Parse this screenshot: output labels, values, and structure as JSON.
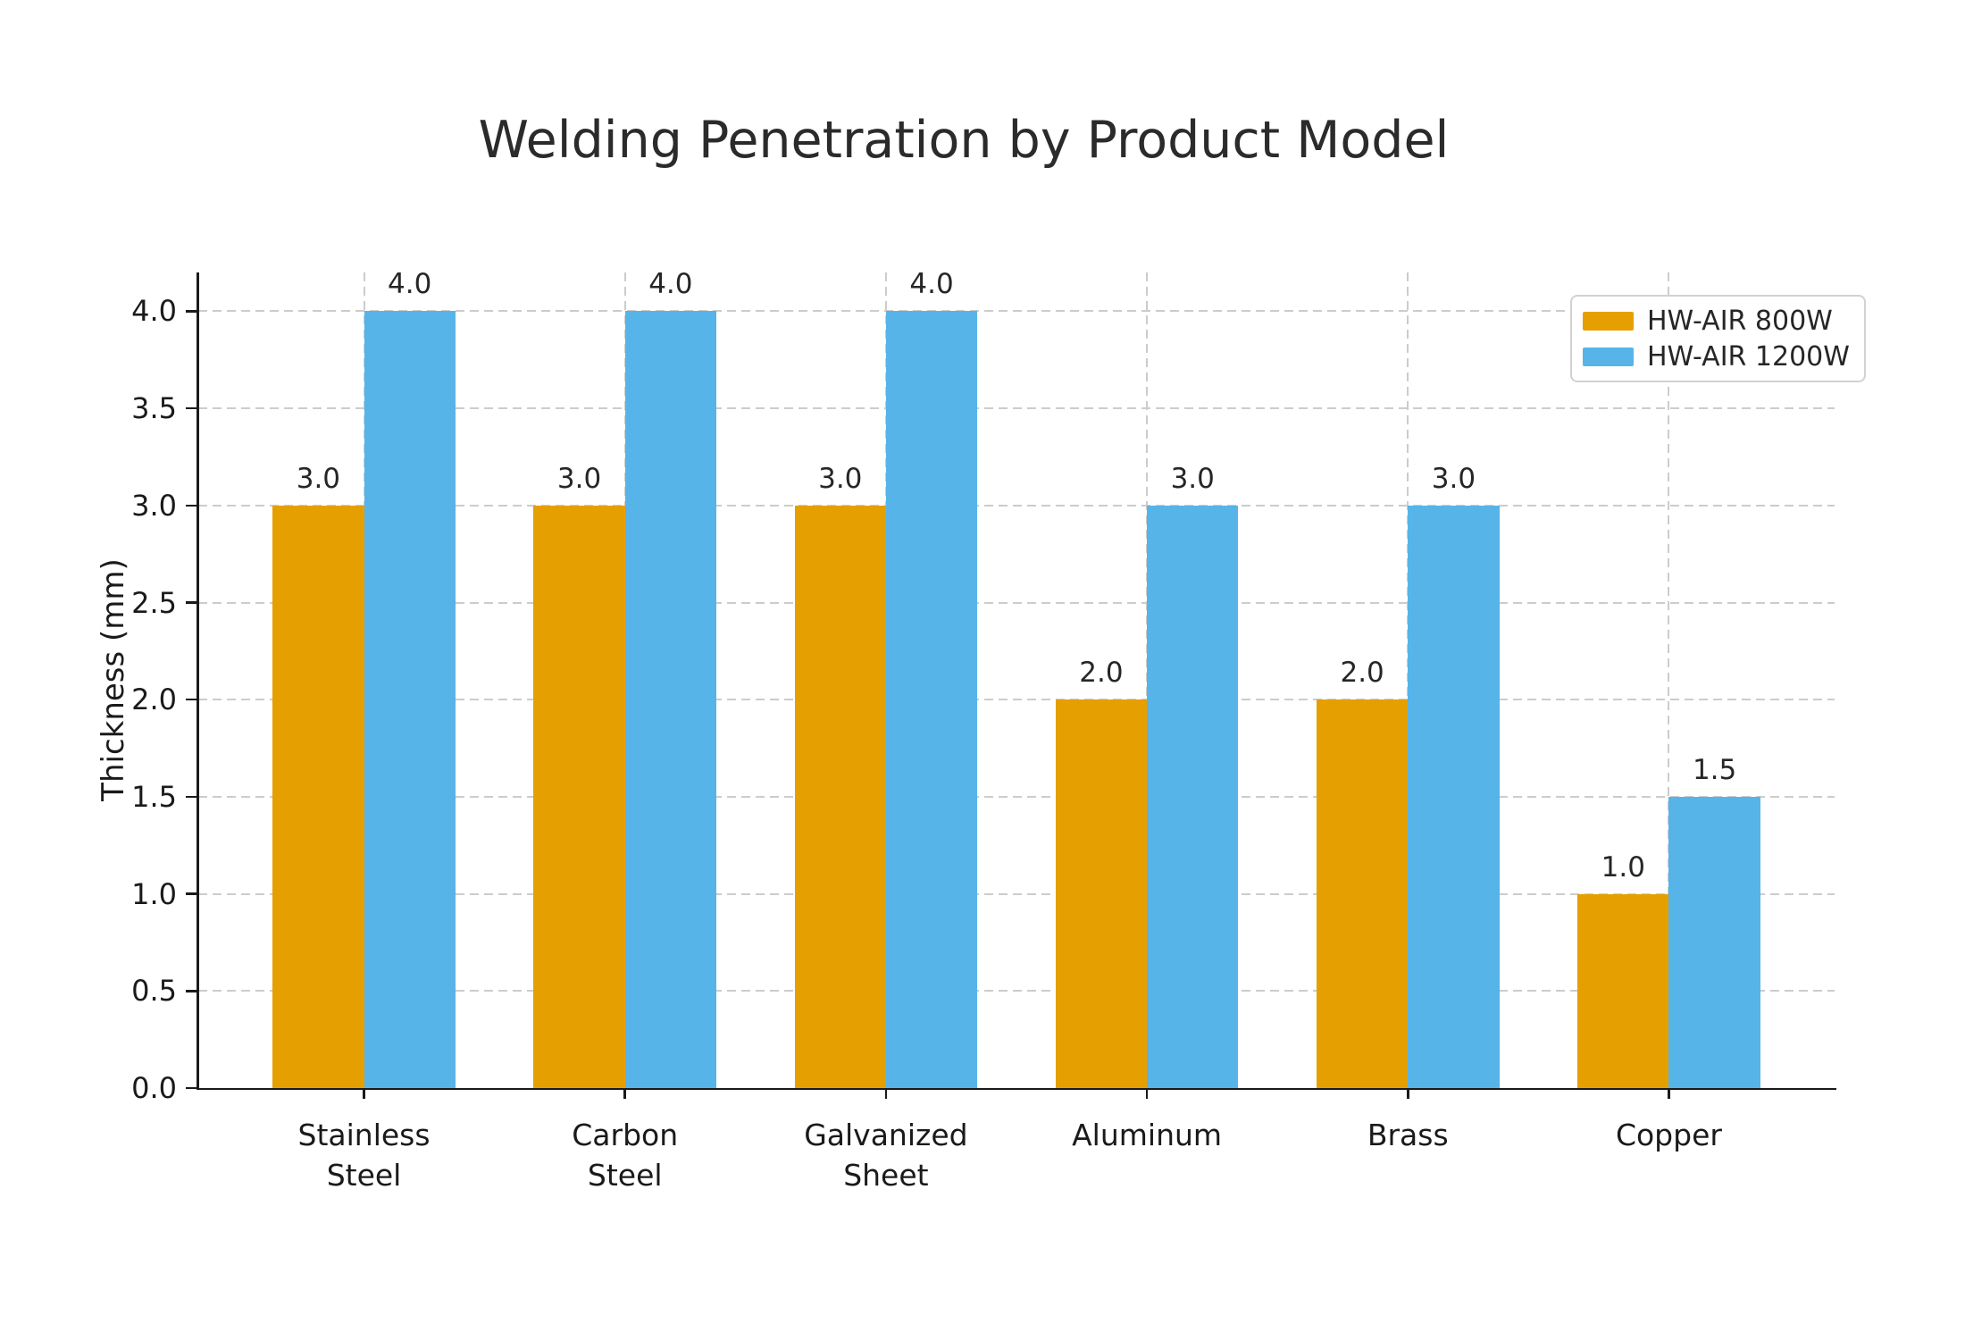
{
  "chart_data": {
    "type": "bar",
    "title": "Welding Penetration by Product Model",
    "xlabel": "",
    "ylabel": "Thickness (mm)",
    "categories": [
      "Stainless\nSteel",
      "Carbon\nSteel",
      "Galvanized\nSheet",
      "Aluminum",
      "Brass",
      "Copper"
    ],
    "series": [
      {
        "name": "HW-AIR 800W",
        "color": "#E69F00",
        "values": [
          3.0,
          3.0,
          3.0,
          2.0,
          2.0,
          1.0
        ]
      },
      {
        "name": "HW-AIR 1200W",
        "color": "#56B4E9",
        "values": [
          4.0,
          4.0,
          4.0,
          3.0,
          3.0,
          1.5
        ]
      }
    ],
    "value_label_format": "one-decimal",
    "ylim": [
      0,
      4.2
    ],
    "ytick_step": 0.5,
    "ytick_labels": [
      "0.0",
      "0.5",
      "1.0",
      "1.5",
      "2.0",
      "2.5",
      "3.0",
      "3.5",
      "4.0"
    ],
    "grid": "both-dashed",
    "legend_position": "upper-right",
    "bar_width_fraction": 0.35,
    "x_axis_margin": 0.635
  }
}
